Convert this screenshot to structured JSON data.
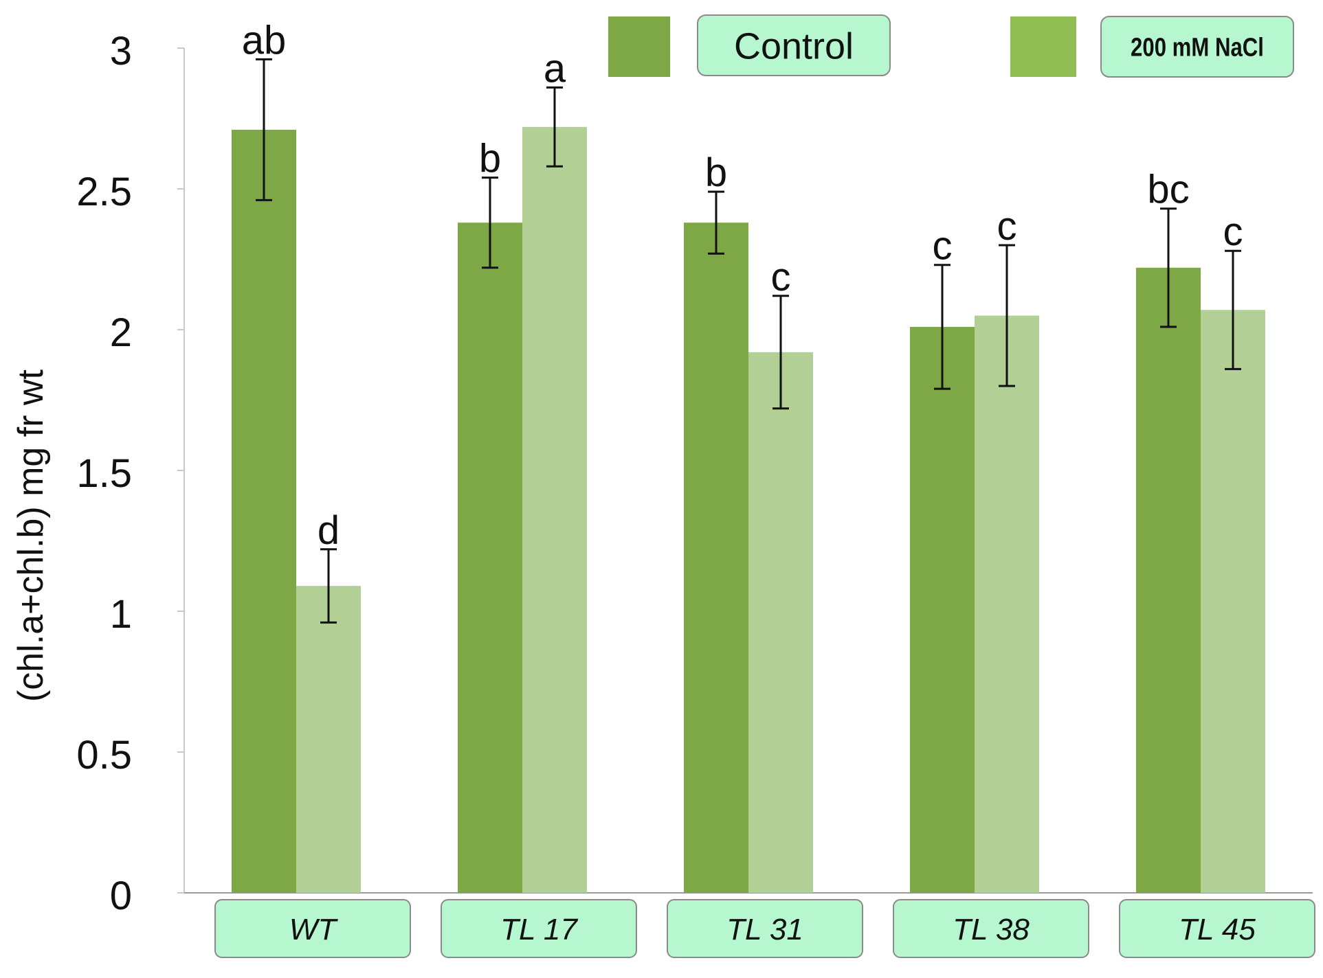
{
  "chart_data": {
    "type": "bar",
    "title": "",
    "xlabel": "",
    "ylabel": "(chl.a+chl.b) mg fr wt",
    "ylim": [
      0,
      3
    ],
    "yticks": [
      {
        "value": 0,
        "label": "0"
      },
      {
        "value": 0.5,
        "label": "0.5"
      },
      {
        "value": 1,
        "label": "1"
      },
      {
        "value": 1.5,
        "label": "1.5"
      },
      {
        "value": 2,
        "label": "2"
      },
      {
        "value": 2.5,
        "label": "2.5"
      },
      {
        "value": 3,
        "label": "3"
      }
    ],
    "categories": [
      "WT",
      "TL 17",
      "TL 31",
      "TL 38",
      "TL 45"
    ],
    "series": [
      {
        "name": "Control",
        "color": "#7ea746",
        "values": [
          2.71,
          2.38,
          2.38,
          2.01,
          2.22
        ],
        "errors": [
          0.25,
          0.16,
          0.11,
          0.22,
          0.21
        ],
        "letters": [
          "ab",
          "b",
          "b",
          "c",
          "bc"
        ]
      },
      {
        "name": "200 mM NaCl",
        "color": "#b2d095",
        "values": [
          1.09,
          2.72,
          1.92,
          2.05,
          2.07
        ],
        "errors": [
          0.13,
          0.14,
          0.2,
          0.25,
          0.21
        ],
        "letters": [
          "d",
          "a",
          "c",
          "c",
          "c"
        ]
      }
    ],
    "legend": {
      "position": "top-right",
      "items": [
        {
          "label": "Control",
          "swatch_color": "#7ea746"
        },
        {
          "label": "200 mM NaCl",
          "swatch_color": "#8fbd52"
        }
      ],
      "label_box_color": "#b6f7cf"
    },
    "category_box_color": "#b6f7cf",
    "grid": false
  }
}
